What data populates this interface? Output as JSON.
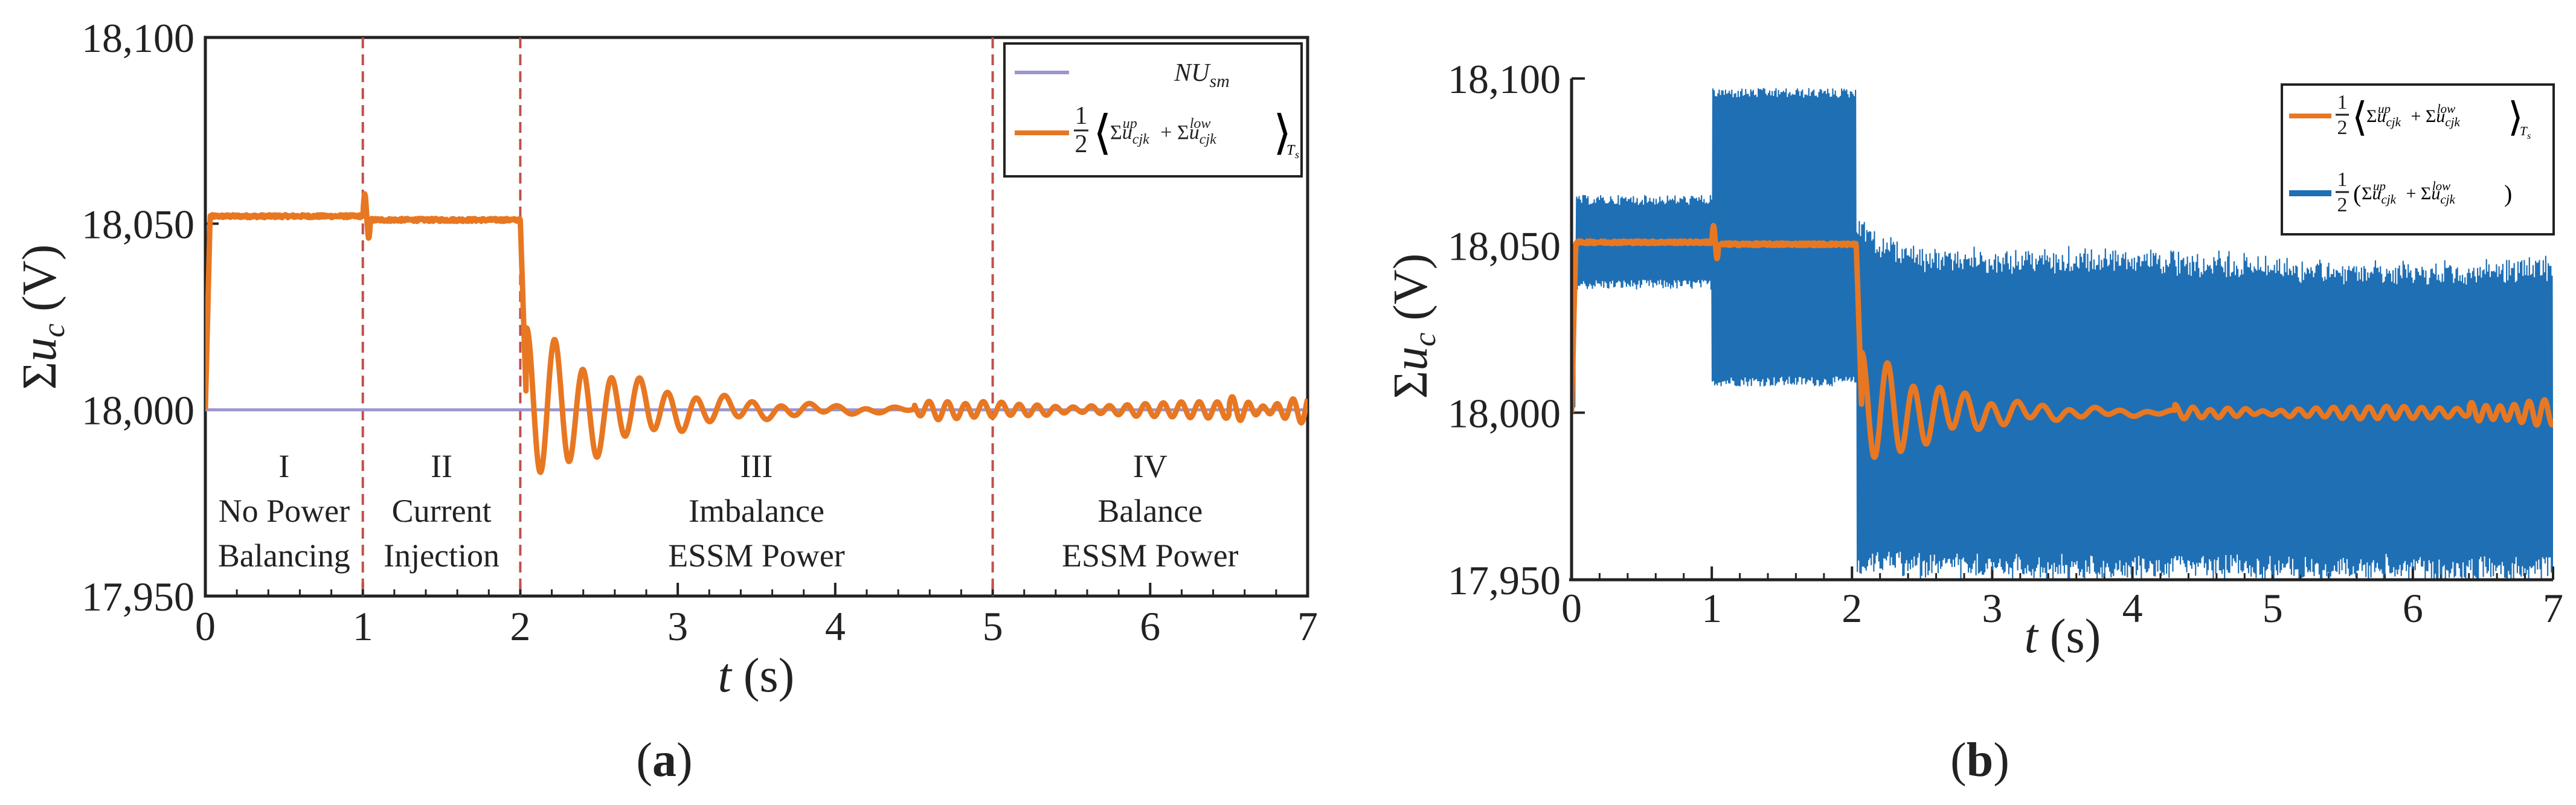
{
  "colors": {
    "orange": "#E87722",
    "blue": "#1F6FB5",
    "lavender": "#9A97D1",
    "divider": "#C0504D",
    "axis": "#222222"
  },
  "chart_data": [
    {
      "id": "a",
      "type": "line",
      "caption_open": "(",
      "caption_letter": "a",
      "caption_close": ")",
      "ylabel": "Σu_c (V)",
      "ylabel_sigma": "Σ",
      "ylabel_u": "u",
      "ylabel_sub": "c",
      "ylabel_unit": " (V)",
      "xlabel_t": "t",
      "xlabel_unit": " (s)",
      "xlim": [
        0,
        7
      ],
      "ylim": [
        17950,
        18100
      ],
      "xticks": [
        "0",
        "1",
        "2",
        "3",
        "4",
        "5",
        "6",
        "7"
      ],
      "yticks": [
        "17,950",
        "18,000",
        "18,050",
        "18,100"
      ],
      "yticks_values": [
        17950,
        18000,
        18050,
        18100
      ],
      "dividers": [
        1,
        2,
        5
      ],
      "regions": [
        {
          "x": 0.5,
          "numeral": "I",
          "line1": "No Power",
          "line2": "Balancing"
        },
        {
          "x": 1.5,
          "numeral": "II",
          "line1": "Current",
          "line2": "Injection"
        },
        {
          "x": 3.5,
          "numeral": "III",
          "line1": "Imbalance",
          "line2": "ESSM Power"
        },
        {
          "x": 6.0,
          "numeral": "IV",
          "line1": "Balance",
          "line2": "ESSM Power"
        }
      ],
      "legend": [
        {
          "label": "NU_sm",
          "main": "NU",
          "sub": "sm",
          "color": "#9A97D1"
        },
        {
          "label": "1/2 ⟨Σu_cjk^up + Σu_cjk^low⟩_Ts",
          "color": "#E87722"
        }
      ],
      "series": [
        {
          "name": "NU_sm",
          "constant": 18000
        },
        {
          "name": "average",
          "plateau1": 18052,
          "plateau2": 18051,
          "steady": 18000
        }
      ]
    },
    {
      "id": "b",
      "type": "line",
      "caption_open": "(",
      "caption_letter": "b",
      "caption_close": ")",
      "ylabel_sigma": "Σ",
      "ylabel_u": "u",
      "ylabel_sub": "c",
      "ylabel_unit": " (V)",
      "xlabel_t": "t",
      "xlabel_unit": " (s)",
      "xlim": [
        0,
        7
      ],
      "ylim": [
        17950,
        18100
      ],
      "xticks": [
        "0",
        "1",
        "2",
        "3",
        "4",
        "5",
        "6",
        "7"
      ],
      "yticks": [
        "17,950",
        "18,000",
        "18,050",
        "18,100"
      ],
      "yticks_values": [
        17950,
        18000,
        18050,
        18100
      ],
      "legend": [
        {
          "label": "1/2 ⟨Σu_cjk^up + Σu_cjk^low⟩_Ts",
          "color": "#E87722"
        },
        {
          "label": "1/2 (Σu_cjk^up + Σu_cjk^low)",
          "color": "#1F6FB5"
        }
      ],
      "series": [
        {
          "name": "average",
          "plateau": 18051,
          "steady": 18000
        },
        {
          "name": "instantaneous",
          "band_0_1": [
            18037,
            18065
          ],
          "band_1_2": [
            18008,
            18097
          ],
          "band_end": [
            17952,
            18045
          ]
        }
      ]
    }
  ]
}
